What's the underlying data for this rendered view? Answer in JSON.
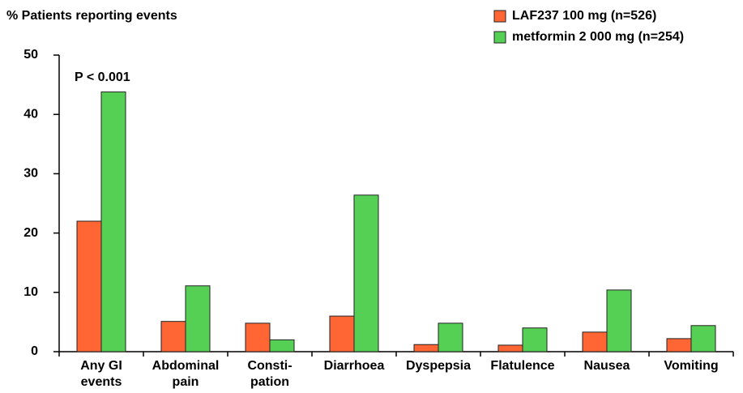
{
  "chart_data": {
    "type": "bar",
    "y_label": "% Patients reporting events",
    "annotation": "P < 0.001",
    "categories": [
      [
        "Any GI",
        "events"
      ],
      [
        "Abdominal",
        "pain"
      ],
      [
        "Consti-",
        "pation"
      ],
      [
        "Diarrhoea"
      ],
      [
        "Dyspepsia"
      ],
      [
        "Flatulence"
      ],
      [
        "Nausea"
      ],
      [
        "Vomiting"
      ]
    ],
    "series": [
      {
        "name": "LAF237 100 mg (n=526)",
        "color": "#ff6633",
        "values": [
          22.0,
          5.1,
          4.8,
          6.0,
          1.2,
          1.1,
          3.3,
          2.2
        ]
      },
      {
        "name": "metformin 2 000 mg (n=254)",
        "color": "#55d055",
        "values": [
          43.8,
          11.1,
          2.0,
          26.4,
          4.8,
          4.0,
          10.4,
          4.4
        ]
      }
    ],
    "ylim": [
      0,
      50
    ],
    "yticks": [
      0,
      10,
      20,
      30,
      40,
      50
    ],
    "legend": "top-right"
  }
}
